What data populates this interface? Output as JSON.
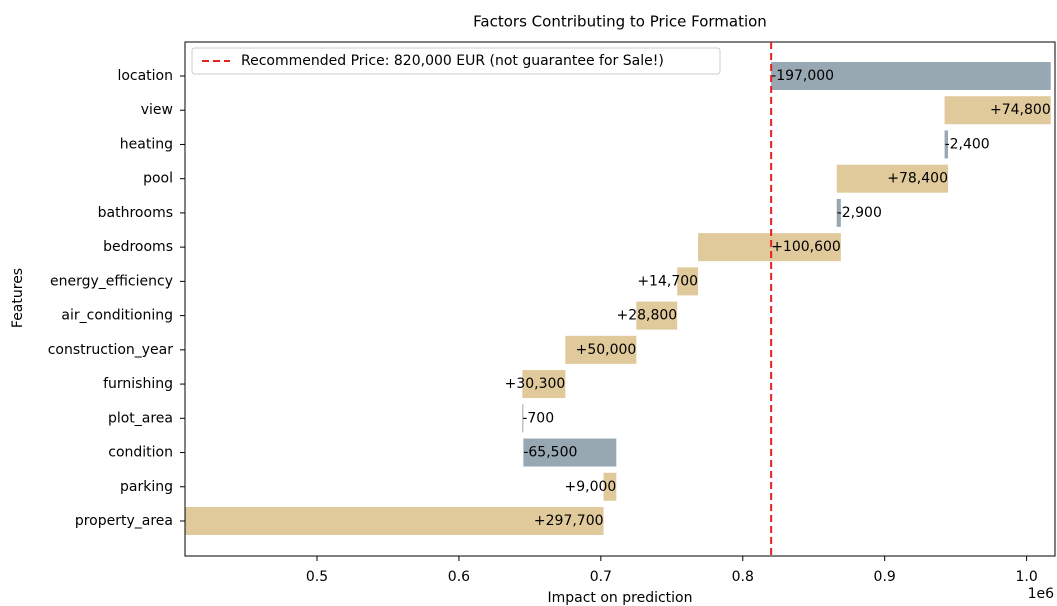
{
  "chart_data": {
    "type": "waterfall",
    "title": "Factors Contributing to Price Formation",
    "xlabel": "Impact on prediction",
    "ylabel": "Features",
    "axis_offset_label": "1e6",
    "categories": [
      "location",
      "view",
      "heating",
      "pool",
      "bathrooms",
      "bedrooms",
      "energy_efficiency",
      "air_conditioning",
      "construction_year",
      "furnishing",
      "plot_area",
      "condition",
      "parking",
      "property_area"
    ],
    "values": [
      -197000,
      74800,
      -2400,
      78400,
      -2900,
      100600,
      14700,
      28800,
      50000,
      30300,
      -700,
      -65500,
      9000,
      297700
    ],
    "value_labels": [
      "-197,000",
      "+74,800",
      "-2,400",
      "+78,400",
      "-2,900",
      "+100,600",
      "+14,700",
      "+28,800",
      "+50,000",
      "+30,300",
      "-700",
      "-65,500",
      "+9,000",
      "+297,700"
    ],
    "positive_color": "#e0c99b",
    "negative_color": "#98a8b3",
    "reference_line": {
      "value": 820000,
      "label": "Recommended Price: 820,000 EUR (not guarantee for Sale!)",
      "color": "#e8201e"
    },
    "xlim": [
      407000,
      1020000
    ],
    "xticks": [
      {
        "value": 500000,
        "label": "0.5"
      },
      {
        "value": 600000,
        "label": "0.6"
      },
      {
        "value": 700000,
        "label": "0.7"
      },
      {
        "value": 800000,
        "label": "0.8"
      },
      {
        "value": 900000,
        "label": "0.9"
      },
      {
        "value": 1000000,
        "label": "1.0"
      }
    ],
    "legend": "upper left"
  }
}
